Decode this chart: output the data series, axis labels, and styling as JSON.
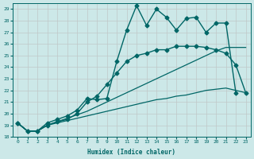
{
  "xlabel": "Humidex (Indice chaleur)",
  "bg_color": "#cce8e8",
  "grid_color": "#b0d4d4",
  "line_color": "#006666",
  "xlim": [
    -0.5,
    23.5
  ],
  "ylim": [
    18,
    29.5
  ],
  "xticks": [
    0,
    1,
    2,
    3,
    4,
    5,
    6,
    7,
    8,
    9,
    10,
    11,
    12,
    13,
    14,
    15,
    16,
    17,
    18,
    19,
    20,
    21,
    22,
    23
  ],
  "yticks": [
    18,
    19,
    20,
    21,
    22,
    23,
    24,
    25,
    26,
    27,
    28,
    29
  ],
  "series": [
    {
      "x": [
        0,
        1,
        2,
        3,
        4,
        5,
        6,
        7,
        8,
        9,
        10,
        11,
        12,
        13,
        14,
        15,
        16,
        17,
        18,
        19,
        20,
        21,
        22
      ],
      "y": [
        19.2,
        18.5,
        18.5,
        19.2,
        19.5,
        19.8,
        20.3,
        21.3,
        21.2,
        21.3,
        24.5,
        27.2,
        29.3,
        27.6,
        29.0,
        28.3,
        27.2,
        28.2,
        28.3,
        27.0,
        27.8,
        27.8,
        21.8
      ],
      "marker": "D",
      "markersize": 2.5,
      "linewidth": 1.0,
      "linestyle": "-"
    },
    {
      "x": [
        0,
        1,
        2,
        3,
        4,
        5,
        6,
        7,
        8,
        9,
        10,
        11,
        12,
        13,
        14,
        15,
        16,
        17,
        18,
        19,
        20,
        21,
        22,
        23
      ],
      "y": [
        19.2,
        18.5,
        18.5,
        19.0,
        19.3,
        19.5,
        20.0,
        21.0,
        21.5,
        22.5,
        23.5,
        24.5,
        25.0,
        25.2,
        25.5,
        25.5,
        25.8,
        25.8,
        25.8,
        25.7,
        25.5,
        25.2,
        24.2,
        21.8
      ],
      "marker": "D",
      "markersize": 2.5,
      "linewidth": 1.0,
      "linestyle": "-"
    },
    {
      "x": [
        0,
        1,
        2,
        3,
        4,
        5,
        6,
        7,
        8,
        9,
        10,
        11,
        12,
        13,
        14,
        15,
        16,
        17,
        18,
        19,
        20,
        21,
        22,
        23
      ],
      "y": [
        19.2,
        18.5,
        18.5,
        19.0,
        19.3,
        19.6,
        19.9,
        20.2,
        20.6,
        21.0,
        21.4,
        21.8,
        22.2,
        22.6,
        23.0,
        23.4,
        23.8,
        24.2,
        24.6,
        25.0,
        25.4,
        25.7,
        25.7,
        25.7
      ],
      "marker": null,
      "markersize": 0,
      "linewidth": 0.9,
      "linestyle": "-"
    },
    {
      "x": [
        0,
        1,
        2,
        3,
        4,
        5,
        6,
        7,
        8,
        9,
        10,
        11,
        12,
        13,
        14,
        15,
        16,
        17,
        18,
        19,
        20,
        21,
        22,
        23
      ],
      "y": [
        19.2,
        18.5,
        18.5,
        19.0,
        19.2,
        19.4,
        19.6,
        19.8,
        20.0,
        20.2,
        20.4,
        20.6,
        20.8,
        21.0,
        21.2,
        21.3,
        21.5,
        21.6,
        21.8,
        22.0,
        22.1,
        22.2,
        22.0,
        21.8
      ],
      "marker": null,
      "markersize": 0,
      "linewidth": 0.9,
      "linestyle": "-"
    }
  ]
}
